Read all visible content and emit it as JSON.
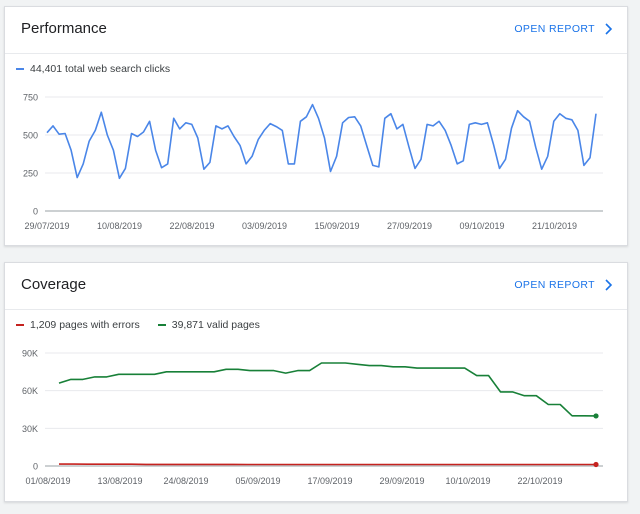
{
  "performance": {
    "title": "Performance",
    "open_report": "OPEN REPORT",
    "legend": [
      {
        "label": "44,401 total web search clicks",
        "color": "#4a86e8"
      }
    ]
  },
  "coverage": {
    "title": "Coverage",
    "open_report": "OPEN REPORT",
    "legend": [
      {
        "label": "1,209 pages with errors",
        "color": "#c5221f"
      },
      {
        "label": "39,871 valid pages",
        "color": "#188038"
      }
    ]
  },
  "chart_data": [
    {
      "type": "line",
      "ylim": [
        0,
        750
      ],
      "yticks": [
        "0",
        "250",
        "500",
        "750"
      ],
      "xticks": [
        "29/07/2019",
        "10/08/2019",
        "22/08/2019",
        "03/09/2019",
        "15/09/2019",
        "27/09/2019",
        "09/10/2019",
        "21/10/2019"
      ],
      "x_start": "29/07/2019",
      "series": [
        {
          "name": "44,401 total web search clicks",
          "color": "#4a86e8",
          "values": [
            515,
            560,
            505,
            510,
            400,
            220,
            310,
            460,
            530,
            650,
            500,
            400,
            215,
            280,
            510,
            490,
            520,
            590,
            400,
            285,
            310,
            610,
            540,
            580,
            570,
            480,
            275,
            320,
            560,
            540,
            560,
            490,
            430,
            310,
            360,
            470,
            530,
            575,
            555,
            530,
            310,
            310,
            590,
            620,
            700,
            610,
            480,
            260,
            360,
            580,
            615,
            620,
            560,
            430,
            300,
            290,
            610,
            640,
            540,
            570,
            420,
            280,
            340,
            570,
            560,
            590,
            530,
            430,
            310,
            330,
            570,
            580,
            570,
            580,
            440,
            280,
            340,
            545,
            660,
            620,
            590,
            420,
            275,
            360,
            590,
            640,
            610,
            600,
            530,
            300,
            350,
            640
          ]
        }
      ]
    },
    {
      "type": "line",
      "ylim": [
        0,
        90000
      ],
      "yticks": [
        "0",
        "30K",
        "60K",
        "90K"
      ],
      "xticks": [
        "01/08/2019",
        "13/08/2019",
        "24/08/2019",
        "05/09/2019",
        "17/09/2019",
        "29/09/2019",
        "10/10/2019",
        "22/10/2019"
      ],
      "x_start": "01/08/2019",
      "series": [
        {
          "name": "1,209 pages with errors",
          "color": "#c5221f",
          "values": [
            1500,
            1500,
            1400,
            1400,
            1400,
            1400,
            1300,
            1300,
            1300,
            1300,
            1300,
            1300,
            1300,
            1200,
            1200,
            1200,
            1200,
            1200,
            1200,
            1200,
            1200,
            1200,
            1200,
            1200,
            1200,
            1200,
            1200,
            1200,
            1200,
            1200,
            1200,
            1200,
            1200,
            1200,
            1200,
            1200,
            1200,
            1209
          ]
        },
        {
          "name": "39,871 valid pages",
          "color": "#188038",
          "values": [
            66000,
            69000,
            69000,
            71000,
            71000,
            73000,
            73000,
            73000,
            73000,
            75000,
            75000,
            75000,
            75000,
            75000,
            77000,
            77000,
            76000,
            76000,
            76000,
            74000,
            76000,
            76000,
            82000,
            82000,
            82000,
            81000,
            80000,
            80000,
            79000,
            79000,
            78000,
            78000,
            78000,
            78000,
            78000,
            72000,
            72000,
            59000,
            59000,
            56000,
            56000,
            49000,
            49000,
            40000,
            40000,
            39871
          ]
        }
      ]
    }
  ]
}
